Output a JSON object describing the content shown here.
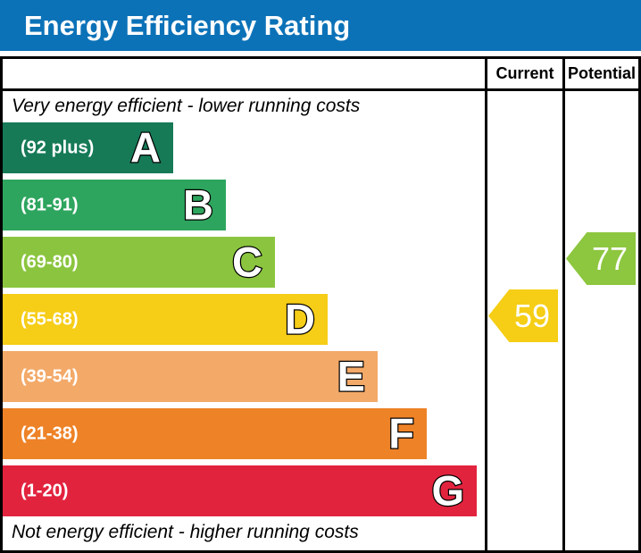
{
  "title": "Energy Efficiency Rating",
  "title_bar_color": "#0c72b8",
  "columns": {
    "current": "Current",
    "potential": "Potential"
  },
  "captions": {
    "top": "Very energy efficient - lower running costs",
    "bottom": "Not energy efficient - higher running costs"
  },
  "bands": [
    {
      "letter": "A",
      "range": "(92 plus)",
      "color": "#167a57",
      "width_pct": 35.4
    },
    {
      "letter": "B",
      "range": "(81-91)",
      "color": "#2ea55e",
      "width_pct": 46.3
    },
    {
      "letter": "C",
      "range": "(69-80)",
      "color": "#8bc53f",
      "width_pct": 56.5
    },
    {
      "letter": "D",
      "range": "(55-68)",
      "color": "#f6cd17",
      "width_pct": 67.4
    },
    {
      "letter": "E",
      "range": "(39-54)",
      "color": "#f3a968",
      "width_pct": 77.8
    },
    {
      "letter": "F",
      "range": "(21-38)",
      "color": "#ee8227",
      "width_pct": 88.0
    },
    {
      "letter": "G",
      "range": "(1-20)",
      "color": "#e2233e",
      "width_pct": 98.3
    }
  ],
  "ratings": {
    "current": {
      "value": "59",
      "band_letter": "D",
      "band_index": 3,
      "color": "#f5ce15",
      "column": "current"
    },
    "potential": {
      "value": "77",
      "band_letter": "C",
      "band_index": 2,
      "color": "#8dc63f",
      "column": "potential"
    }
  },
  "chart_data": {
    "type": "bar",
    "title": "Energy Efficiency Rating",
    "categories": [
      "A",
      "B",
      "C",
      "D",
      "E",
      "F",
      "G"
    ],
    "band_ranges": [
      "(92 plus)",
      "(81-91)",
      "(69-80)",
      "(55-68)",
      "(39-54)",
      "(21-38)",
      "(1-20)"
    ],
    "band_colors": [
      "#167a57",
      "#2ea55e",
      "#8bc53f",
      "#f6cd17",
      "#f3a968",
      "#ee8227",
      "#e2233e"
    ],
    "bar_width_pct": [
      35.4,
      46.3,
      56.5,
      67.4,
      77.8,
      88.0,
      98.3
    ],
    "current_rating": 59,
    "current_band": "D",
    "potential_rating": 77,
    "potential_band": "C",
    "annotations": [
      "Very energy efficient - lower running costs",
      "Not energy efficient - higher running costs"
    ],
    "legend_position": "none",
    "grid": false
  }
}
